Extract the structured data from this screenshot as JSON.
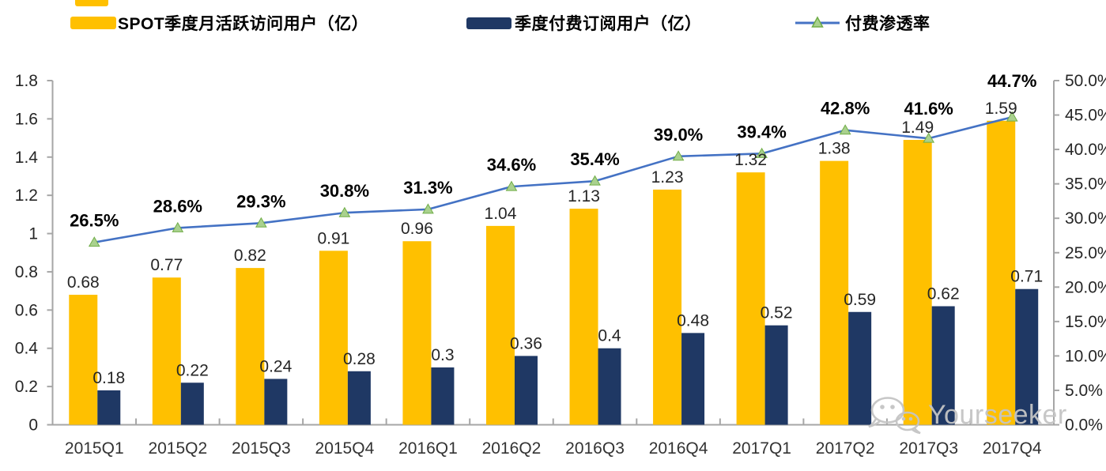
{
  "legend": {
    "items": [
      {
        "id": "mau",
        "label": "SPOT季度月活跃访问用户（亿）",
        "color": "#FFC000",
        "swatch": "bar"
      },
      {
        "id": "subs",
        "label": "季度付费订阅用户（亿）",
        "color": "#1F3864",
        "swatch": "bar"
      },
      {
        "id": "penetration",
        "label": "付费渗透率",
        "color": "#4472C4",
        "marker_fill": "#A9D18E",
        "marker_edge": "#70AD47",
        "swatch": "line-triangle"
      }
    ]
  },
  "chart_data": {
    "type": "combo_bar_line",
    "categories": [
      "2015Q1",
      "2015Q2",
      "2015Q3",
      "2015Q4",
      "2016Q1",
      "2016Q2",
      "2016Q3",
      "2016Q4",
      "2017Q1",
      "2017Q2",
      "2017Q3",
      "2017Q4"
    ],
    "series": [
      {
        "name": "SPOT季度月活跃访问用户（亿）",
        "type": "bar",
        "axis": "left",
        "color": "#FFC000",
        "values": [
          0.68,
          0.77,
          0.82,
          0.91,
          0.96,
          1.04,
          1.13,
          1.23,
          1.32,
          1.38,
          1.49,
          1.59
        ],
        "value_labels": [
          "0.68",
          "0.77",
          "0.82",
          "0.91",
          "0.96",
          "1.04",
          "1.13",
          "1.23",
          "1.32",
          "1.38",
          "1.49",
          "1.59"
        ]
      },
      {
        "name": "季度付费订阅用户（亿）",
        "type": "bar",
        "axis": "left",
        "color": "#1F3864",
        "values": [
          0.18,
          0.22,
          0.24,
          0.28,
          0.3,
          0.36,
          0.4,
          0.48,
          0.52,
          0.59,
          0.62,
          0.71
        ],
        "value_labels": [
          "0.18",
          "0.22",
          "0.24",
          "0.28",
          "0.3",
          "0.36",
          "0.4",
          "0.48",
          "0.52",
          "0.59",
          "0.62",
          "0.71"
        ]
      },
      {
        "name": "付费渗透率",
        "type": "line",
        "axis": "right",
        "color": "#4472C4",
        "marker": "triangle",
        "marker_fill": "#A9D18E",
        "marker_edge": "#70AD47",
        "values": [
          26.5,
          28.6,
          29.3,
          30.8,
          31.3,
          34.6,
          35.4,
          39.0,
          39.4,
          42.8,
          41.6,
          44.7
        ],
        "point_labels": [
          "26.5%",
          "28.6%",
          "29.3%",
          "30.8%",
          "31.3%",
          "34.6%",
          "35.4%",
          "39.0%",
          "39.4%",
          "42.8%",
          "41.6%",
          "44.7%"
        ]
      }
    ],
    "left_axis": {
      "min": 0,
      "max": 1.8,
      "tick_labels": [
        "0",
        "0.2",
        "0.4",
        "0.6",
        "0.8",
        "1",
        "1.2",
        "1.4",
        "1.6",
        "1.8"
      ]
    },
    "right_axis": {
      "min": 0,
      "max": 50,
      "tick_labels": [
        "0.0%",
        "5.0%",
        "10.0%",
        "15.0%",
        "20.0%",
        "25.0%",
        "30.0%",
        "35.0%",
        "40.0%",
        "45.0%",
        "50.0%"
      ]
    },
    "grid": false,
    "legend_position": "top"
  },
  "watermark": {
    "text": "Yourseeker",
    "icon": "wechat-icon"
  }
}
